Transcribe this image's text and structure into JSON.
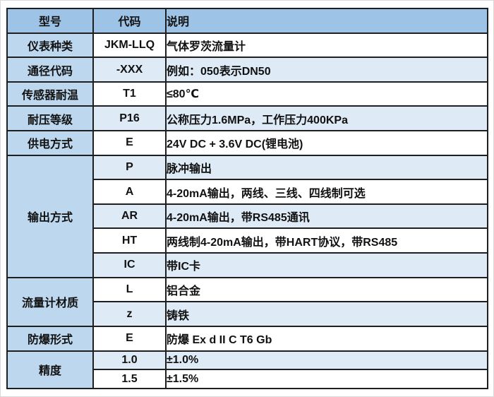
{
  "table": {
    "title": "flow-meter-ordering-code-table",
    "colors": {
      "header_bg": "#9DC3E6",
      "model_col_bg": "#BDD7EE",
      "alt_row_bg": "#DEEAF6",
      "plain_row_bg": "#FFFFFF",
      "border": "#1F1F1F",
      "text": "#111111"
    },
    "headers": {
      "model": "型号",
      "code": "代码",
      "desc": "说明"
    },
    "rows": [
      {
        "model": "仪表种类",
        "code": "JKM-LLQ",
        "desc": "气体罗茨流量计"
      },
      {
        "model": "通径代码",
        "code": "-XXX",
        "desc": "例如：050表示DN50"
      },
      {
        "model": "传感器耐温",
        "code": "T1",
        "desc": "≤80℃"
      },
      {
        "model": "耐压等级",
        "code": "P16",
        "desc": "公称压力1.6MPa，工作压力400KPa"
      },
      {
        "model": "供电方式",
        "code": "E",
        "desc": "24V DC + 3.6V DC(锂电池)"
      },
      {
        "model": "输出方式",
        "code": "P",
        "desc": "脉冲输出"
      },
      {
        "code": "A",
        "desc": "4-20mA输出，两线、三线、四线制可选"
      },
      {
        "code": "AR",
        "desc": "4-20mA输出，带RS485通讯"
      },
      {
        "code": "HT",
        "desc": "两线制4-20mA输出，带HART协议，带RS485"
      },
      {
        "code": "IC",
        "desc": "带IC卡"
      },
      {
        "model": "流量计材质",
        "code": "L",
        "desc": "铝合金"
      },
      {
        "code": "z",
        "desc": "铸铁"
      },
      {
        "model": "防爆形式",
        "code": "E",
        "desc": "防爆 Ex d II C T6 Gb"
      },
      {
        "model": "精度",
        "code": "1.0",
        "desc": "±1.0%"
      },
      {
        "code": "1.5",
        "desc": "±1.5%"
      }
    ]
  }
}
